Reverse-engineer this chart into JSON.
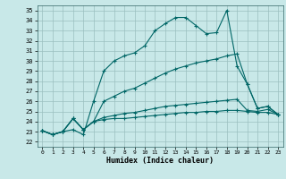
{
  "xlabel": "Humidex (Indice chaleur)",
  "bg_color": "#c8e8e8",
  "grid_color": "#9bbfbf",
  "line_color": "#006666",
  "xlim": [
    -0.5,
    23.5
  ],
  "ylim": [
    21.5,
    35.5
  ],
  "yticks": [
    22,
    23,
    24,
    25,
    26,
    27,
    28,
    29,
    30,
    31,
    32,
    33,
    34,
    35
  ],
  "xticks": [
    0,
    1,
    2,
    3,
    4,
    5,
    6,
    7,
    8,
    9,
    10,
    11,
    12,
    13,
    14,
    15,
    16,
    17,
    18,
    19,
    20,
    21,
    22,
    23
  ],
  "lines": [
    {
      "x": [
        0,
        1,
        2,
        3,
        4,
        5,
        6,
        7,
        8,
        9,
        10,
        11,
        12,
        13,
        14,
        15,
        16,
        17,
        18,
        19,
        20,
        21,
        22,
        23
      ],
      "y": [
        23.1,
        22.7,
        23.0,
        23.2,
        22.7,
        26.0,
        29.0,
        30.0,
        30.5,
        30.8,
        31.5,
        33.0,
        33.7,
        34.3,
        34.3,
        33.5,
        32.7,
        32.8,
        35.0,
        29.5,
        27.7,
        25.3,
        25.5,
        24.7
      ]
    },
    {
      "x": [
        0,
        1,
        2,
        3,
        4,
        5,
        6,
        7,
        8,
        9,
        10,
        11,
        12,
        13,
        14,
        15,
        16,
        17,
        18,
        19,
        20,
        21,
        22,
        23
      ],
      "y": [
        23.1,
        22.7,
        23.0,
        24.3,
        23.2,
        24.0,
        26.0,
        26.5,
        27.0,
        27.3,
        27.8,
        28.3,
        28.8,
        29.2,
        29.5,
        29.8,
        30.0,
        30.2,
        30.5,
        30.7,
        27.7,
        25.3,
        25.5,
        24.7
      ]
    },
    {
      "x": [
        0,
        1,
        2,
        3,
        4,
        5,
        6,
        7,
        8,
        9,
        10,
        11,
        12,
        13,
        14,
        15,
        16,
        17,
        18,
        19,
        20,
        21,
        22,
        23
      ],
      "y": [
        23.1,
        22.7,
        23.0,
        24.3,
        23.2,
        24.0,
        24.4,
        24.6,
        24.8,
        24.9,
        25.1,
        25.3,
        25.5,
        25.6,
        25.7,
        25.8,
        25.9,
        26.0,
        26.1,
        26.2,
        25.1,
        25.0,
        25.2,
        24.7
      ]
    },
    {
      "x": [
        0,
        1,
        2,
        3,
        4,
        5,
        6,
        7,
        8,
        9,
        10,
        11,
        12,
        13,
        14,
        15,
        16,
        17,
        18,
        19,
        20,
        21,
        22,
        23
      ],
      "y": [
        23.1,
        22.7,
        23.0,
        24.3,
        23.2,
        24.0,
        24.2,
        24.3,
        24.3,
        24.4,
        24.5,
        24.6,
        24.7,
        24.8,
        24.9,
        24.9,
        25.0,
        25.0,
        25.1,
        25.1,
        25.0,
        24.9,
        24.9,
        24.7
      ]
    }
  ]
}
